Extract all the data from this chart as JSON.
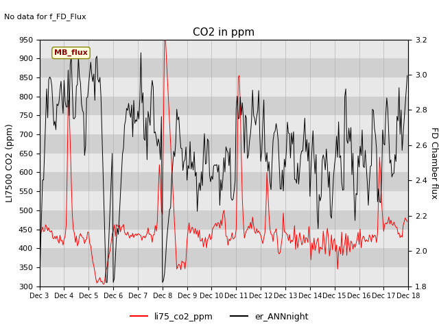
{
  "title": "CO2 in ppm",
  "ylabel_left": "LI7500 CO2 (ppm)",
  "ylabel_right": "FD Chamber flux",
  "ylim_left": [
    300,
    950
  ],
  "ylim_right": [
    1.8,
    3.2
  ],
  "xlim": [
    0,
    360
  ],
  "xtick_labels": [
    "Dec 3",
    "Dec 4",
    "Dec 5",
    "Dec 6",
    "Dec 7",
    "Dec 8",
    "Dec 9",
    "Dec 10",
    "Dec 11",
    "Dec 12",
    "Dec 13",
    "Dec 14",
    "Dec 15",
    "Dec 16",
    "Dec 17",
    "Dec 18"
  ],
  "xtick_positions": [
    0,
    24,
    48,
    72,
    96,
    120,
    144,
    168,
    192,
    216,
    240,
    264,
    288,
    312,
    336,
    360
  ],
  "annotation_text": "No data for f_FD_Flux",
  "mb_flux_label": "MB_flux",
  "legend_labels": [
    "li75_co2_ppm",
    "er_ANNnight"
  ],
  "legend_colors": [
    "red",
    "black"
  ],
  "bg_color": "#e0e0e0",
  "band_color_light": "#ececec",
  "band_color_dark": "#d4d4d4",
  "title_fontsize": 11,
  "axis_fontsize": 9,
  "tick_fontsize": 8
}
